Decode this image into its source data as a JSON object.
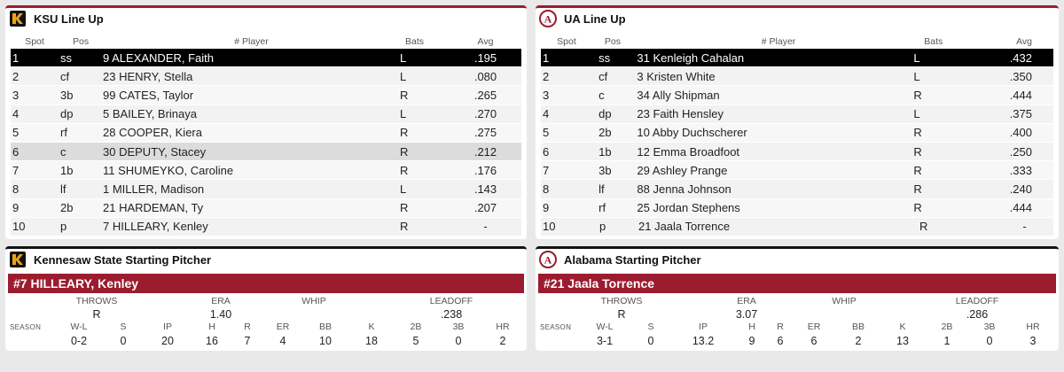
{
  "ksu": {
    "title": "KSU Line Up",
    "headers": {
      "spot": "Spot",
      "pos": "Pos",
      "player": "# Player",
      "bats": "Bats",
      "avg": "Avg"
    },
    "rows": [
      {
        "spot": "1",
        "pos": "ss",
        "player": "9 ALEXANDER, Faith",
        "bats": "L",
        "avg": ".195"
      },
      {
        "spot": "2",
        "pos": "cf",
        "player": "23 HENRY, Stella",
        "bats": "L",
        "avg": ".080"
      },
      {
        "spot": "3",
        "pos": "3b",
        "player": "99 CATES, Taylor",
        "bats": "R",
        "avg": ".265"
      },
      {
        "spot": "4",
        "pos": "dp",
        "player": "5 BAILEY, Brinaya",
        "bats": "L",
        "avg": ".270"
      },
      {
        "spot": "5",
        "pos": "rf",
        "player": "28 COOPER, Kiera",
        "bats": "R",
        "avg": ".275"
      },
      {
        "spot": "6",
        "pos": "c",
        "player": "30 DEPUTY, Stacey",
        "bats": "R",
        "avg": ".212"
      },
      {
        "spot": "7",
        "pos": "1b",
        "player": "11 SHUMEYKO, Caroline",
        "bats": "R",
        "avg": ".176"
      },
      {
        "spot": "8",
        "pos": "lf",
        "player": "1 MILLER, Madison",
        "bats": "L",
        "avg": ".143"
      },
      {
        "spot": "9",
        "pos": "2b",
        "player": "21 HARDEMAN, Ty",
        "bats": "R",
        "avg": ".207"
      },
      {
        "spot": "10",
        "pos": "p",
        "player": "7 HILLEARY, Kenley",
        "bats": "R",
        "avg": "-"
      }
    ]
  },
  "ua": {
    "title": "UA Line Up",
    "headers": {
      "spot": "Spot",
      "pos": "Pos",
      "player": "# Player",
      "bats": "Bats",
      "avg": "Avg"
    },
    "rows": [
      {
        "spot": "1",
        "pos": "ss",
        "player": "31 Kenleigh Cahalan",
        "bats": "L",
        "avg": ".432"
      },
      {
        "spot": "2",
        "pos": "cf",
        "player": "3 Kristen White",
        "bats": "L",
        "avg": ".350"
      },
      {
        "spot": "3",
        "pos": "c",
        "player": "34 Ally Shipman",
        "bats": "R",
        "avg": ".444"
      },
      {
        "spot": "4",
        "pos": "dp",
        "player": "23 Faith Hensley",
        "bats": "L",
        "avg": ".375"
      },
      {
        "spot": "5",
        "pos": "2b",
        "player": "10 Abby Duchscherer",
        "bats": "R",
        "avg": ".400"
      },
      {
        "spot": "6",
        "pos": "1b",
        "player": "12 Emma Broadfoot",
        "bats": "R",
        "avg": ".250"
      },
      {
        "spot": "7",
        "pos": "3b",
        "player": "29 Ashley Prange",
        "bats": "R",
        "avg": ".333"
      },
      {
        "spot": "8",
        "pos": "lf",
        "player": "88 Jenna Johnson",
        "bats": "R",
        "avg": ".240"
      },
      {
        "spot": "9",
        "pos": "rf",
        "player": "25 Jordan Stephens",
        "bats": "R",
        "avg": ".444"
      },
      {
        "spot": "10",
        "pos": "p",
        "player": "21 Jaala Torrence",
        "bats": "R",
        "avg": "-"
      }
    ]
  },
  "ksu_pitcher": {
    "title": "Kennesaw State Starting Pitcher",
    "name": "#7 HILLEARY, Kenley",
    "labels": {
      "throws": "THROWS",
      "era": "ERA",
      "whip": "WHIP",
      "leadoff": "LEADOFF",
      "season": "SEASON",
      "wl": "W-L",
      "s": "S",
      "ip": "IP",
      "h": "H",
      "r": "R",
      "er": "ER",
      "bb": "BB",
      "k": "K",
      "b2": "2B",
      "b3": "3B",
      "hr": "HR"
    },
    "throws": "R",
    "era": "1.40",
    "whip": "",
    "leadoff": ".238",
    "stats": {
      "wl": "0-2",
      "s": "0",
      "ip": "20",
      "h": "16",
      "r": "7",
      "er": "4",
      "bb": "10",
      "k": "18",
      "b2": "5",
      "b3": "0",
      "hr": "2"
    }
  },
  "ua_pitcher": {
    "title": "Alabama Starting Pitcher",
    "name": "#21 Jaala Torrence",
    "labels": {
      "throws": "THROWS",
      "era": "ERA",
      "whip": "WHIP",
      "leadoff": "LEADOFF",
      "season": "SEASON",
      "wl": "W-L",
      "s": "S",
      "ip": "IP",
      "h": "H",
      "r": "R",
      "er": "ER",
      "bb": "BB",
      "k": "K",
      "b2": "2B",
      "b3": "3B",
      "hr": "HR"
    },
    "throws": "R",
    "era": "3.07",
    "whip": "",
    "leadoff": ".286",
    "stats": {
      "wl": "3-1",
      "s": "0",
      "ip": "13.2",
      "h": "9",
      "r": "6",
      "er": "6",
      "bb": "2",
      "k": "13",
      "b2": "1",
      "b3": "0",
      "hr": "3"
    }
  },
  "colors": {
    "crimson": "#9b1c2e",
    "ksu_gold": "#e8a317",
    "active_row": "#000000"
  },
  "icons": {
    "ksu": "ksu-logo-icon",
    "ua": "alabama-logo-icon"
  }
}
